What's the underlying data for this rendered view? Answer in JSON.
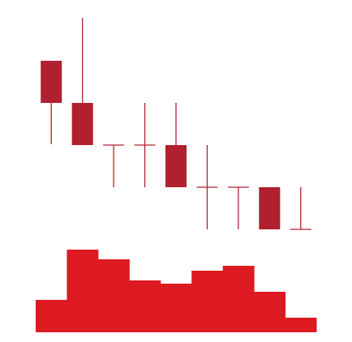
{
  "chart_data": {
    "type": "candlestick",
    "open": [
      225,
      173,
      121,
      121,
      121,
      69,
      69,
      69,
      17
    ],
    "high": [
      225,
      278,
      121,
      173,
      173,
      121,
      69,
      69,
      69
    ],
    "low": [
      122,
      121,
      69,
      69,
      69,
      17,
      17,
      17,
      17
    ],
    "close": [
      173,
      121,
      121,
      121,
      69,
      69,
      69,
      17,
      17
    ],
    "volume": [
      40,
      102,
      90,
      64,
      60,
      76,
      82,
      50,
      18
    ],
    "up_color": "#1a9c4a",
    "down_color": "#b0202e",
    "volume_color": "#dd1a22",
    "ylim": [
      0,
      300
    ],
    "y2lim": [
      0,
      110
    ]
  }
}
